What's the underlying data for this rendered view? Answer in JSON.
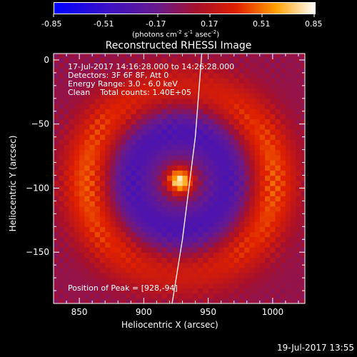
{
  "colorbar": {
    "ticks": [
      "-0.85",
      "-0.51",
      "-0.17",
      "0.17",
      "0.51",
      "0.85"
    ],
    "units_main": "(photons cm",
    "units_exp1": "-2",
    "units_s": " s",
    "units_exp2": "-1",
    "units_asec": " asec",
    "units_exp3": "-2",
    "units_close": ")",
    "range": [
      -0.85,
      0.85
    ]
  },
  "info": {
    "line1": "17-Jul-2017 14:16:28.000 to 14:26:28.000",
    "line2": "Detectors: 3F 6F 8F, Att 0",
    "line3": "Energy Range: 3.0 - 6.0 keV",
    "line4": "Clean    Total counts: 1.40E+05",
    "peak": "Position of Peak = [928,-94]"
  },
  "footer": {
    "timestamp": "19-Jul-2017 13:55"
  },
  "chart_data": {
    "type": "heatmap",
    "title": "Reconstructed RHESSI Image",
    "xlabel": "Heliocentric X (arcsec)",
    "ylabel": "Heliocentric Y (arcsec)",
    "xlim": [
      830,
      1025
    ],
    "ylim": [
      -190,
      5
    ],
    "xticks": [
      850,
      900,
      950,
      1000
    ],
    "yticks": [
      0,
      -50,
      -100,
      -150
    ],
    "colormap": "blue-purple-red-yellow-white",
    "peak": {
      "x": 928,
      "y": -94,
      "value": 0.85
    },
    "features": [
      {
        "name": "core source",
        "x": 928,
        "y": -94,
        "radius": 8,
        "value": 0.85
      },
      {
        "name": "negative ring",
        "x": 925,
        "y": -95,
        "radius": 40,
        "value": -0.4
      },
      {
        "name": "positive ring",
        "x": 925,
        "y": -100,
        "radius": 70,
        "value": 0.35
      }
    ],
    "limb": [
      [
        945,
        5
      ],
      [
        940,
        -60
      ],
      [
        930,
        -140
      ],
      [
        922,
        -190
      ]
    ]
  }
}
